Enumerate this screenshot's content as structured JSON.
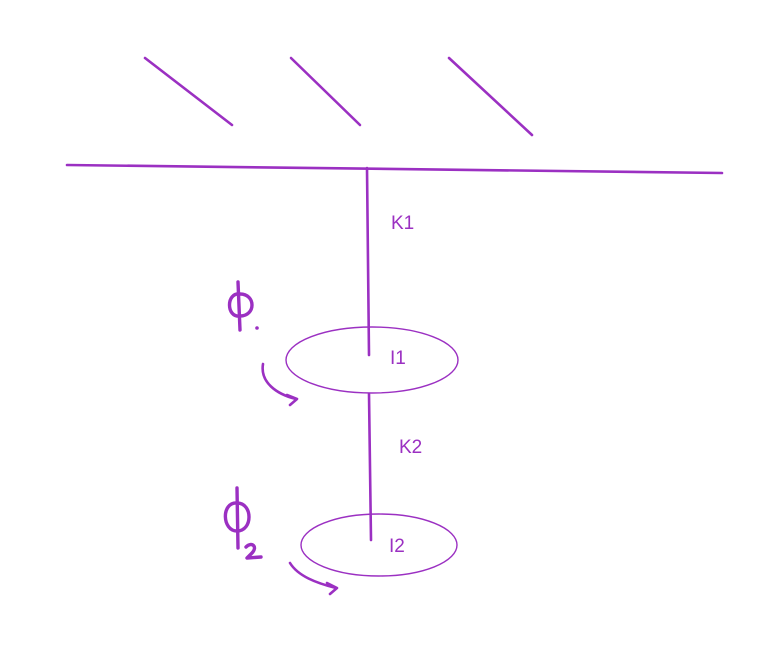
{
  "labels": {
    "k1": "K1",
    "i1": "I1",
    "k2": "K2",
    "i2": "I2"
  },
  "handwritten": {
    "phi1": "Φ1",
    "phi2": "Φ2"
  },
  "colors": {
    "ink": "#9b30c2",
    "background": "#ffffff"
  }
}
